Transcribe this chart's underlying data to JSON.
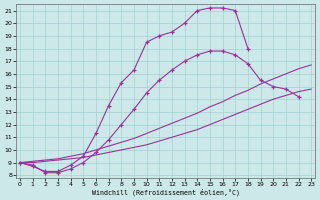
{
  "bg_color": "#cce8e8",
  "line_color": "#993399",
  "xlabel": "Windchill (Refroidissement éolien,°C)",
  "xlim": [
    -0.3,
    23.3
  ],
  "ylim": [
    7.8,
    21.5
  ],
  "yticks": [
    8,
    9,
    10,
    11,
    12,
    13,
    14,
    15,
    16,
    17,
    18,
    19,
    20,
    21
  ],
  "xticks": [
    0,
    1,
    2,
    3,
    4,
    5,
    6,
    7,
    8,
    9,
    10,
    11,
    12,
    13,
    14,
    15,
    16,
    17,
    18,
    19,
    20,
    21,
    22,
    23
  ],
  "curve1_x": [
    0,
    1,
    2,
    3,
    4,
    5,
    6,
    7,
    8,
    9,
    10,
    11,
    12,
    13,
    14,
    15,
    16,
    17,
    18
  ],
  "curve1_y": [
    9.0,
    8.7,
    8.3,
    8.3,
    8.8,
    9.5,
    11.3,
    13.5,
    15.3,
    16.3,
    18.5,
    19.0,
    19.3,
    20.0,
    21.0,
    21.2,
    21.2,
    21.0,
    18.0
  ],
  "curve2_x": [
    0,
    1,
    2,
    3,
    4,
    5,
    6,
    7,
    8,
    9,
    10,
    11,
    12,
    13,
    14,
    15,
    16,
    17,
    18,
    19,
    20,
    21,
    22
  ],
  "curve2_y": [
    9.0,
    8.8,
    8.2,
    8.2,
    8.5,
    9.0,
    9.8,
    10.8,
    12.0,
    13.2,
    14.5,
    15.5,
    16.3,
    17.0,
    17.5,
    17.8,
    17.8,
    17.5,
    16.8,
    15.5,
    15.0,
    14.8,
    14.2
  ],
  "curve3_x": [
    0,
    1,
    2,
    3,
    4,
    5,
    6,
    7,
    8,
    9,
    10,
    11,
    12,
    13,
    14,
    15,
    16,
    17,
    18,
    19,
    20,
    21,
    22,
    23
  ],
  "curve3_y": [
    9.0,
    9.1,
    9.2,
    9.3,
    9.5,
    9.7,
    10.0,
    10.3,
    10.6,
    10.9,
    11.3,
    11.7,
    12.1,
    12.5,
    12.9,
    13.4,
    13.8,
    14.3,
    14.7,
    15.2,
    15.6,
    16.0,
    16.4,
    16.7
  ],
  "curve4_x": [
    0,
    1,
    2,
    3,
    4,
    5,
    6,
    7,
    8,
    9,
    10,
    11,
    12,
    13,
    14,
    15,
    16,
    17,
    18,
    19,
    20,
    21,
    22,
    23
  ],
  "curve4_y": [
    9.0,
    9.0,
    9.1,
    9.2,
    9.3,
    9.4,
    9.6,
    9.8,
    10.0,
    10.2,
    10.4,
    10.7,
    11.0,
    11.3,
    11.6,
    12.0,
    12.4,
    12.8,
    13.2,
    13.6,
    14.0,
    14.3,
    14.6,
    14.8
  ]
}
